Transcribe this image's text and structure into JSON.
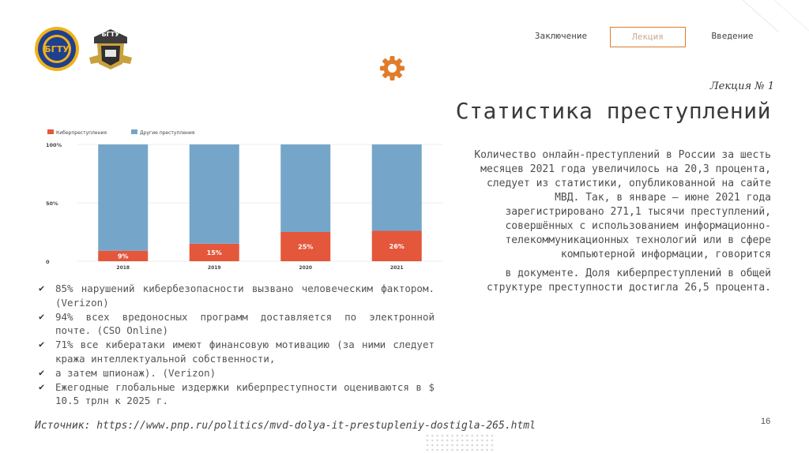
{
  "nav": {
    "items": [
      "Заключение",
      "Лекция",
      "Введение"
    ],
    "active_index": 1
  },
  "header": {
    "lecture_number": "Лекция № 1",
    "title": "Статистика преступлений"
  },
  "logos": {
    "logo1_text": "БГТУ",
    "logo2_text": "БГТУ"
  },
  "colors": {
    "accent": "#e07c2a",
    "cyber": "#e4573a",
    "other": "#75a6c9"
  },
  "chart_data": {
    "type": "bar",
    "stacked": true,
    "categories": [
      "2018",
      "2019",
      "2020",
      "2021"
    ],
    "series": [
      {
        "name": "Киберпреступления",
        "values": [
          9,
          15,
          25,
          26
        ],
        "labels": [
          "9%",
          "15%",
          "25%",
          "26%"
        ]
      },
      {
        "name": "Другие преступления",
        "values": [
          91,
          85,
          75,
          74
        ]
      }
    ],
    "y_ticks": [
      "100%",
      "50%",
      "0"
    ],
    "ylim": [
      0,
      100
    ],
    "legend_position": "top-left"
  },
  "body_text": {
    "paragraph1": "Количество онлайн-преступлений в России за шесть месяцев 2021 года увеличилось на 20,3 процента, следует из статистики, опубликованной на сайте МВД. Так, в январе — июне 2021 года зарегистрировано 271,1 тысячи преступлений, совершённых с использованием информационно-телекоммуникационных технологий или в сфере компьютерной информации, говорится",
    "paragraph2": "в документе. Доля киберпреступлений в общей структуре преступности достигла 26,5 процента."
  },
  "bullets": [
    "85% нарушений кибербезопасности вызвано человеческим фактором. (Verizon)",
    "94% всех вредоносных программ доставляется по электронной почте. (CSO Online)",
    "71% все кибератаки имеют финансовую мотивацию (за ними следует кража интеллектуальной собственности,",
    "а затем шпионаж). (Verizon)",
    "Ежегодные глобальные издержки киберпреступности оцениваются в $ 10.5 трлн к 2025 г."
  ],
  "source": "Источник: https://www.pnp.ru/politics/mvd-dolya-it-prestupleniy-dostigla-265.html",
  "page_number": "16"
}
